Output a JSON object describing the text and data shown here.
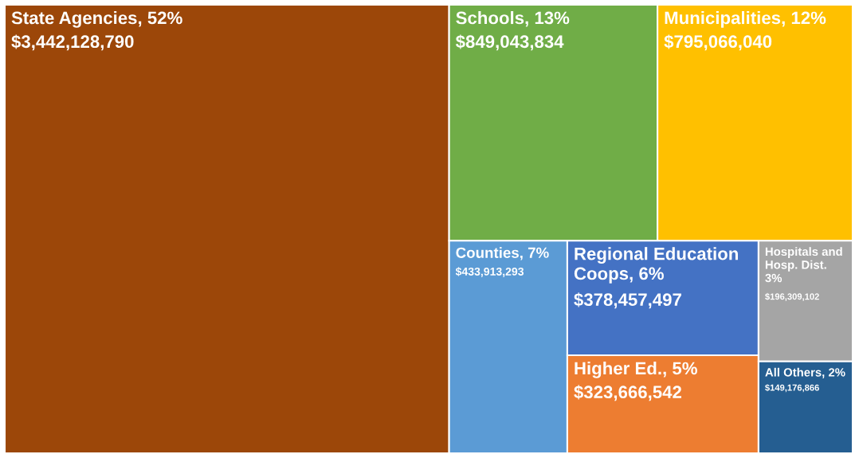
{
  "chart_data": {
    "type": "other",
    "categories": [
      "State Agencies, 52%",
      "Schools, 13%",
      "Municipalities, 12%",
      "Counties, 7%",
      "Regional Education Coops, 6%",
      "Higher Ed., 5%",
      "Hospitals and Hosp. Dist. 3%",
      "All Others, 2%"
    ],
    "values": [
      3442128790,
      849043834,
      795066040,
      433913293,
      378457497,
      323666542,
      196309102,
      149176866
    ],
    "value_labels": [
      "$3,442,128,790",
      "$849,043,834",
      "$795,066,040",
      "$433,913,293",
      "$378,457,497",
      "$323,666,542",
      "$196,309,102",
      "$149,176,866"
    ],
    "colors": [
      "#9c4709",
      "#70ad47",
      "#ffc000",
      "#5b9bd5",
      "#4472c4",
      "#ed7d31",
      "#a5a5a5",
      "#255e91"
    ]
  }
}
